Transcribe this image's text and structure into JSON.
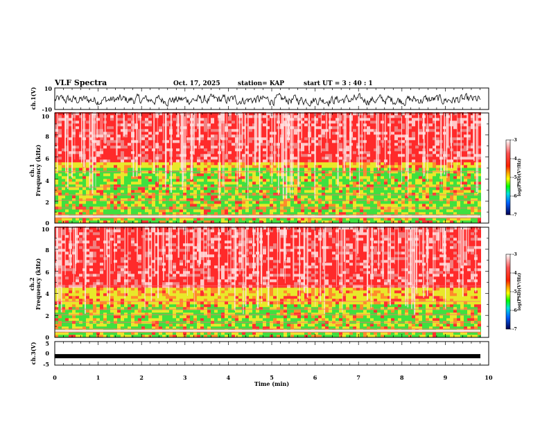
{
  "header": {
    "title": "VLF Spectra",
    "date": "Oct. 17, 2025",
    "station": "station= KAP",
    "start": "start  UT =   3  : 40 : 1"
  },
  "chart_data": [
    {
      "type": "line",
      "name": "ch1-waveform",
      "ylabel": "ch.1(V)",
      "ylim": [
        -10,
        10
      ],
      "yticks": [
        "10",
        "-10"
      ],
      "description_values": "noisy waveform roughly between -6 and 4 V"
    },
    {
      "type": "heatmap",
      "name": "ch1-spectrogram",
      "ylabel_line1": "ch.1",
      "ylabel_line2": "Frequency (kHz)",
      "yticks": [
        "0",
        "2",
        "4",
        "6",
        "8",
        "10"
      ],
      "ylim": [
        0,
        10
      ],
      "colorbar": {
        "label": "log(PSD)(V²/Hz)",
        "ticks": [
          "-3",
          "-4",
          "-5",
          "-6",
          "-7"
        ],
        "range": [
          -7,
          -3
        ]
      },
      "bands_khz": {
        "green_top": 5.0,
        "yellow_top": 5.3
      }
    },
    {
      "type": "heatmap",
      "name": "ch2-spectrogram",
      "ylabel_line1": "ch.2",
      "ylabel_line2": "Frequency (kHz)",
      "yticks": [
        "0",
        "2",
        "4",
        "6",
        "8",
        "10"
      ],
      "ylim": [
        0,
        10
      ],
      "colorbar": {
        "label": "log(PSD)(V²/Hz)",
        "ticks": [
          "-3",
          "-4",
          "-5",
          "-6",
          "-7"
        ],
        "range": [
          -7,
          -3
        ]
      },
      "bands_khz": {
        "green_top": 3.0,
        "yellow_top": 4.4
      }
    },
    {
      "type": "line",
      "name": "ch3-waveform",
      "ylabel": "ch.3(V)",
      "ylim": [
        -5,
        5
      ],
      "yticks": [
        "5",
        "0",
        "-5"
      ],
      "level": -1.2
    }
  ],
  "xaxis": {
    "label": "Time (min)",
    "ticks": [
      "0",
      "1",
      "2",
      "3",
      "4",
      "5",
      "6",
      "7",
      "8",
      "9",
      "10"
    ],
    "range": [
      0,
      10
    ],
    "data_end": 9.8
  }
}
